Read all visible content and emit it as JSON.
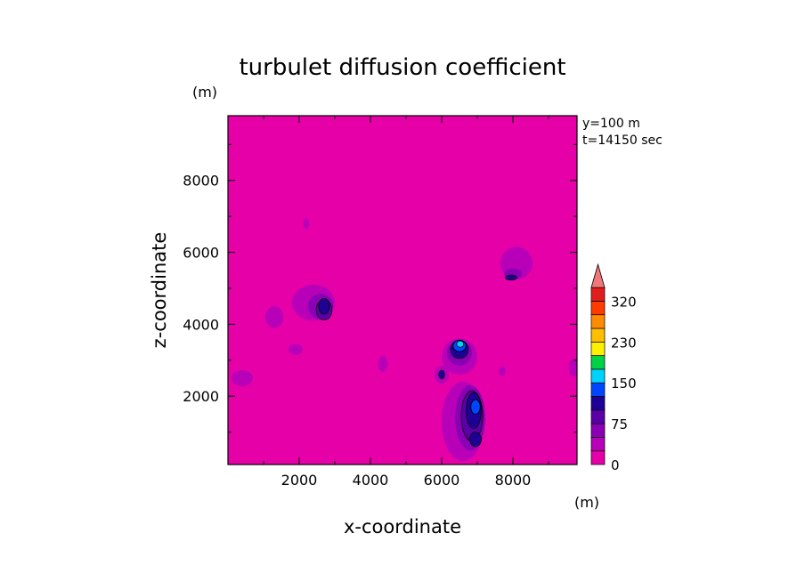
{
  "chart_data": {
    "type": "heatmap",
    "title": "turbulet diffusion coefficient",
    "xlabel": "x-coordinate",
    "ylabel": "z-coordinate",
    "x_unit": "(m)",
    "y_unit": "(m)",
    "info": [
      "y=100 m",
      "t=14150 sec"
    ],
    "xlim": [
      0,
      9800
    ],
    "ylim": [
      100,
      9800
    ],
    "x_ticks": [
      2000,
      4000,
      6000,
      8000
    ],
    "x_tick_labels": [
      "2000",
      "4000",
      "6000",
      "8000"
    ],
    "y_ticks": [
      2000,
      4000,
      6000,
      8000
    ],
    "y_tick_labels": [
      "2000",
      "4000",
      "6000",
      "8000"
    ],
    "background_color": "#e600a8",
    "colorbar": {
      "levels": [
        0,
        25,
        50,
        75,
        100,
        125,
        150,
        175,
        200,
        230,
        260,
        290,
        320
      ],
      "labels": [
        "0",
        "75",
        "150",
        "230",
        "320"
      ],
      "label_values": [
        0,
        75,
        150,
        230,
        320
      ],
      "colors": [
        "#e600a8",
        "#b800b8",
        "#8a00b4",
        "#5a00a8",
        "#1e0096",
        "#0046ff",
        "#00d2ff",
        "#00d246",
        "#fff000",
        "#ffbe00",
        "#ff8c00",
        "#ff3c00",
        "#e01e1e"
      ],
      "extend_arrow_color": "#f07878"
    },
    "features": [
      {
        "name": "central-tall-plume",
        "x": 6900,
        "z": 1400,
        "level": 4,
        "levels": [
          {
            "x": 6600,
            "z": 1300,
            "rx": 600,
            "rz": 1100,
            "c": 1
          },
          {
            "x": 6800,
            "z": 1400,
            "rx": 420,
            "rz": 900,
            "c": 2
          },
          {
            "x": 6850,
            "z": 1450,
            "rx": 300,
            "rz": 700,
            "c": 3
          },
          {
            "x": 6900,
            "z": 1600,
            "rx": 210,
            "rz": 500,
            "c": 4
          },
          {
            "x": 6950,
            "z": 800,
            "rx": 160,
            "rz": 200,
            "c": 4
          },
          {
            "x": 6950,
            "z": 1700,
            "rx": 130,
            "rz": 200,
            "c": 5
          }
        ]
      },
      {
        "name": "plume-peak-upper",
        "x": 6600,
        "z": 3300,
        "levels": [
          {
            "x": 6500,
            "z": 3100,
            "rx": 500,
            "rz": 500,
            "c": 1
          },
          {
            "x": 6500,
            "z": 3200,
            "rx": 350,
            "rz": 350,
            "c": 2
          },
          {
            "x": 6500,
            "z": 3300,
            "rx": 250,
            "rz": 250,
            "c": 4
          },
          {
            "x": 6500,
            "z": 3400,
            "rx": 180,
            "rz": 160,
            "c": 5
          },
          {
            "x": 6520,
            "z": 3450,
            "rx": 100,
            "rz": 90,
            "c": 6
          }
        ]
      },
      {
        "name": "plume-left-mid",
        "x": 2500,
        "z": 4500,
        "levels": [
          {
            "x": 2400,
            "z": 4600,
            "rx": 600,
            "rz": 500,
            "c": 1
          },
          {
            "x": 2600,
            "z": 4500,
            "rx": 350,
            "rz": 350,
            "c": 2
          },
          {
            "x": 2700,
            "z": 4400,
            "rx": 220,
            "rz": 280,
            "c": 3
          },
          {
            "x": 2700,
            "z": 4500,
            "rx": 150,
            "rz": 220,
            "c": 4
          }
        ]
      },
      {
        "name": "plume-right-upper",
        "x": 8100,
        "z": 5600,
        "levels": [
          {
            "x": 8100,
            "z": 5700,
            "rx": 450,
            "rz": 450,
            "c": 1
          },
          {
            "x": 8000,
            "z": 5400,
            "rx": 250,
            "rz": 150,
            "c": 2
          },
          {
            "x": 7950,
            "z": 5300,
            "rx": 160,
            "rz": 70,
            "c": 4
          }
        ]
      },
      {
        "name": "patch-left-low",
        "x": 400,
        "z": 2500,
        "levels": [
          {
            "x": 400,
            "z": 2500,
            "rx": 300,
            "rz": 220,
            "c": 1
          }
        ]
      },
      {
        "name": "patch-left-4200",
        "x": 1500,
        "z": 4200,
        "levels": [
          {
            "x": 1300,
            "z": 4200,
            "rx": 250,
            "rz": 300,
            "c": 1
          }
        ]
      },
      {
        "name": "patch-3300",
        "x": 1900,
        "z": 3300,
        "levels": [
          {
            "x": 1900,
            "z": 3300,
            "rx": 200,
            "rz": 150,
            "c": 1
          }
        ]
      },
      {
        "name": "patch-4300",
        "x": 4300,
        "z": 2900,
        "levels": [
          {
            "x": 4350,
            "z": 2900,
            "rx": 130,
            "rz": 220,
            "c": 1
          }
        ]
      },
      {
        "name": "patch-2200-6800",
        "x": 2200,
        "z": 6800,
        "levels": [
          {
            "x": 2200,
            "z": 6800,
            "rx": 80,
            "rz": 150,
            "c": 1
          }
        ]
      },
      {
        "name": "patch-right-edge",
        "x": 9700,
        "z": 2800,
        "levels": [
          {
            "x": 9700,
            "z": 2800,
            "rx": 130,
            "rz": 250,
            "c": 1
          }
        ]
      },
      {
        "name": "patch-7700",
        "x": 7700,
        "z": 2700,
        "levels": [
          {
            "x": 7700,
            "z": 2700,
            "rx": 100,
            "rz": 130,
            "c": 1
          }
        ]
      },
      {
        "name": "patch-6000",
        "x": 6000,
        "z": 2600,
        "levels": [
          {
            "x": 6000,
            "z": 2600,
            "rx": 200,
            "rz": 250,
            "c": 1
          },
          {
            "x": 6000,
            "z": 2600,
            "rx": 80,
            "rz": 120,
            "c": 4
          }
        ]
      }
    ]
  }
}
